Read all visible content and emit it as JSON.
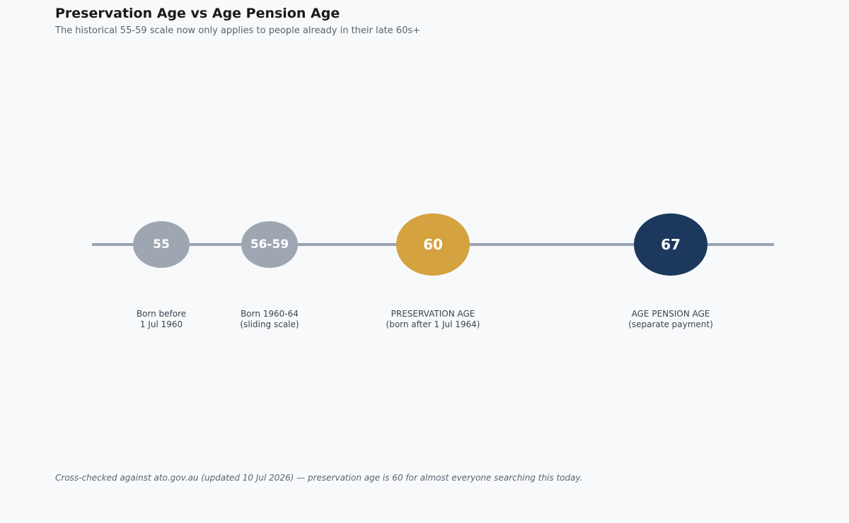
{
  "header": {
    "title": "Preservation Age vs Age Pension Age",
    "subtitle": "The historical 55-59 scale now only applies to people already in their late 60s+"
  },
  "footer": {
    "note": "Cross-checked against ato.gov.au (updated 10 Jul 2026) — preservation age is 60 for almost everyone searching this today."
  },
  "colors": {
    "axis": "#98a3b2",
    "historical": "#9ea7b1",
    "preservation": "#d4a23f",
    "pension": "#1c385c"
  },
  "timeline": {
    "nodes": [
      {
        "id": "55",
        "value": "55",
        "caption": [
          "Born before",
          "1 Jul 1960"
        ],
        "emphasis": "historical"
      },
      {
        "id": "56-59",
        "value": "56-59",
        "caption": [
          "Born 1960-64",
          "(sliding scale)"
        ],
        "emphasis": "historical"
      },
      {
        "id": "60",
        "value": "60",
        "caption": [
          "PRESERVATION AGE",
          "(born after 1 Jul 1964)"
        ],
        "emphasis": "preservation"
      },
      {
        "id": "67",
        "value": "67",
        "caption": [
          "AGE PENSION AGE",
          "(separate payment)"
        ],
        "emphasis": "pension"
      }
    ]
  }
}
